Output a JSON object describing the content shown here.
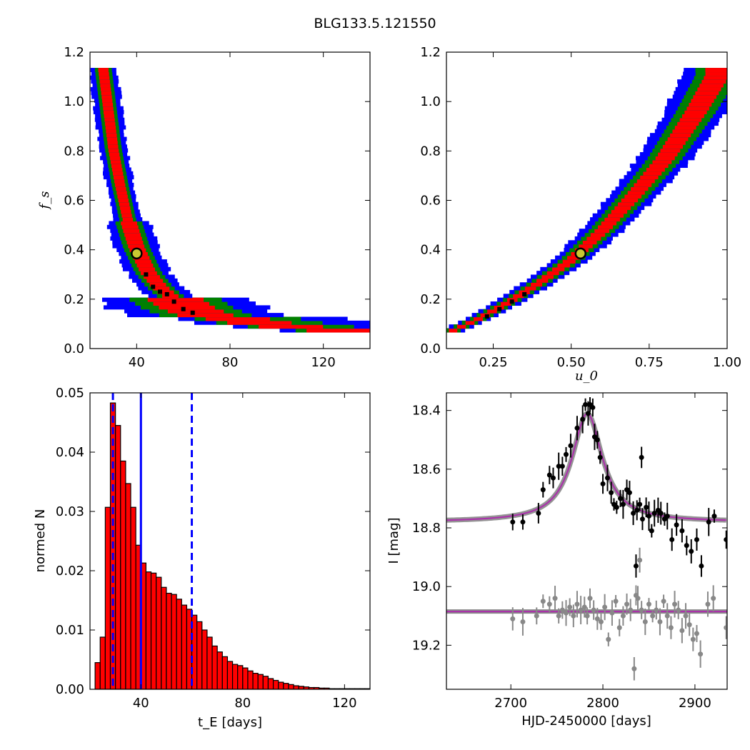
{
  "title": "BLG133.5.121550",
  "colors": {
    "sigma1": "#ff0000",
    "sigma2": "#008000",
    "sigma3": "#0000ff",
    "best": "#000000",
    "marker_face": "#c8c832",
    "bar": "#ff0000",
    "median": "#0000ff",
    "fit": "#aa33aa",
    "band": "#888888",
    "data": "#000000",
    "residual": "#888888"
  },
  "panels": {
    "fs_tE": {
      "ylabel": "f_s",
      "xticks": [
        "40",
        "80",
        "120"
      ],
      "yticks": [
        "0.0",
        "0.2",
        "0.4",
        "0.6",
        "0.8",
        "1.0",
        "1.2"
      ]
    },
    "fs_u0": {
      "xlabel": "u_0",
      "xticks": [
        "0.25",
        "0.50",
        "0.75",
        "1.00"
      ],
      "yticks": [
        "0.0",
        "0.2",
        "0.4",
        "0.6",
        "0.8",
        "1.0",
        "1.2"
      ]
    },
    "hist": {
      "xlabel_sym": "t_E",
      "xlabel_unit": "[days]",
      "ylabel": "normed N",
      "xticks": [
        "40",
        "80",
        "120"
      ],
      "yticks": [
        "0.00",
        "0.01",
        "0.02",
        "0.03",
        "0.04",
        "0.05"
      ]
    },
    "lightcurve": {
      "xlabel": "HJD-2450000 [days]",
      "ylabel": "I [mag]",
      "xticks": [
        "2700",
        "2800",
        "2900"
      ],
      "yticks": [
        "18.4",
        "18.6",
        "18.8",
        "19.0",
        "19.2"
      ]
    }
  },
  "chart_data": [
    {
      "type": "heatmap",
      "name": "f_s vs t_E",
      "x_range": [
        20,
        140
      ],
      "ylim": [
        0.0,
        1.2
      ],
      "ylabel": "f_s",
      "best_fit": {
        "tE": 40,
        "fs": 0.385
      },
      "ridge": [
        [
          26,
          1.1
        ],
        [
          28,
          0.95
        ],
        [
          30,
          0.8
        ],
        [
          33,
          0.65
        ],
        [
          36,
          0.52
        ],
        [
          40,
          0.4
        ],
        [
          45,
          0.3
        ],
        [
          50,
          0.24
        ],
        [
          55,
          0.2
        ],
        [
          62,
          0.155
        ],
        [
          70,
          0.125
        ],
        [
          80,
          0.105
        ],
        [
          90,
          0.09
        ],
        [
          100,
          0.08
        ],
        [
          110,
          0.075
        ],
        [
          120,
          0.07
        ]
      ],
      "best_chain": [
        [
          44,
          0.3
        ],
        [
          47,
          0.25
        ],
        [
          50,
          0.23
        ],
        [
          53,
          0.22
        ],
        [
          56,
          0.19
        ],
        [
          60,
          0.16
        ],
        [
          64,
          0.145
        ]
      ]
    },
    {
      "type": "heatmap",
      "name": "f_s vs u_0",
      "xlim": [
        0.1,
        1.0
      ],
      "ylim": [
        0.0,
        1.2
      ],
      "xlabel": "u_0",
      "best_fit": {
        "u0": 0.53,
        "fs": 0.385
      },
      "ridge": [
        [
          0.13,
          0.07
        ],
        [
          0.2,
          0.11
        ],
        [
          0.3,
          0.18
        ],
        [
          0.4,
          0.26
        ],
        [
          0.5,
          0.35
        ],
        [
          0.6,
          0.47
        ],
        [
          0.7,
          0.61
        ],
        [
          0.8,
          0.76
        ],
        [
          0.9,
          0.95
        ],
        [
          0.97,
          1.1
        ]
      ],
      "best_chain": [
        [
          0.23,
          0.13
        ],
        [
          0.27,
          0.16
        ],
        [
          0.31,
          0.19
        ],
        [
          0.35,
          0.22
        ]
      ]
    },
    {
      "type": "bar",
      "name": "t_E histogram",
      "xlim": [
        20,
        130
      ],
      "ylim": [
        0.0,
        0.05
      ],
      "xlabel": "t_E [days]",
      "ylabel": "normed N",
      "bin_start": 22,
      "bin_width": 2,
      "values": [
        0.0045,
        0.0088,
        0.0307,
        0.0483,
        0.0445,
        0.0385,
        0.0347,
        0.0307,
        0.0243,
        0.0213,
        0.0198,
        0.0196,
        0.0189,
        0.0172,
        0.0162,
        0.016,
        0.0152,
        0.0142,
        0.0135,
        0.0125,
        0.0114,
        0.01,
        0.0088,
        0.0073,
        0.0063,
        0.0055,
        0.0047,
        0.0042,
        0.004,
        0.0036,
        0.0031,
        0.0027,
        0.0025,
        0.0022,
        0.0018,
        0.0015,
        0.0012,
        0.001,
        0.0008,
        0.0006,
        0.0005,
        0.0004,
        0.0003,
        0.0003,
        0.0002,
        0.0002,
        0.0001,
        0.0001,
        0.0001,
        0.0001,
        0.0001,
        0.0001,
        0.0001,
        0.0001
      ],
      "median": 40,
      "interval": [
        29,
        60
      ]
    },
    {
      "type": "scatter",
      "name": "light curve",
      "xlim": [
        2630,
        2935
      ],
      "ylim": [
        19.35,
        18.34
      ],
      "xlabel": "HJD-2450000 [days]",
      "ylabel": "I [mag]",
      "model": {
        "t0": 2783,
        "baseline": 18.78,
        "peak": 18.41,
        "width": 20
      },
      "residual_baseline": 19.085,
      "data": [
        [
          2702,
          18.78
        ],
        [
          2713,
          18.78
        ],
        [
          2730,
          18.75
        ],
        [
          2735,
          18.67
        ],
        [
          2742,
          18.62
        ],
        [
          2746,
          18.63
        ],
        [
          2752,
          18.59
        ],
        [
          2756,
          18.59
        ],
        [
          2760,
          18.55
        ],
        [
          2765,
          18.52
        ],
        [
          2772,
          18.46
        ],
        [
          2778,
          18.43
        ],
        [
          2781,
          18.38
        ],
        [
          2784,
          18.41
        ],
        [
          2786,
          18.38
        ],
        [
          2789,
          18.39
        ],
        [
          2791,
          18.49
        ],
        [
          2794,
          18.5
        ],
        [
          2797,
          18.56
        ],
        [
          2800,
          18.65
        ],
        [
          2805,
          18.63
        ],
        [
          2809,
          18.68
        ],
        [
          2812,
          18.72
        ],
        [
          2815,
          18.73
        ],
        [
          2819,
          18.7
        ],
        [
          2822,
          18.72
        ],
        [
          2826,
          18.67
        ],
        [
          2829,
          18.68
        ],
        [
          2833,
          18.75
        ],
        [
          2837,
          18.74
        ],
        [
          2840,
          18.72
        ],
        [
          2843,
          18.77
        ],
        [
          2847,
          18.73
        ],
        [
          2850,
          18.76
        ],
        [
          2853,
          18.81
        ],
        [
          2856,
          18.75
        ],
        [
          2860,
          18.74
        ],
        [
          2863,
          18.75
        ],
        [
          2867,
          18.77
        ],
        [
          2870,
          18.76
        ],
        [
          2875,
          18.84
        ],
        [
          2880,
          18.79
        ],
        [
          2886,
          18.81
        ],
        [
          2891,
          18.86
        ],
        [
          2896,
          18.88
        ],
        [
          2902,
          18.84
        ],
        [
          2907,
          18.93
        ],
        [
          2915,
          18.78
        ],
        [
          2921,
          18.76
        ],
        [
          2934,
          18.84
        ],
        [
          2836,
          18.93
        ],
        [
          2842,
          18.56
        ]
      ],
      "residuals": [
        [
          2702,
          19.11
        ],
        [
          2713,
          19.12
        ],
        [
          2728,
          19.1
        ],
        [
          2735,
          19.05
        ],
        [
          2742,
          19.06
        ],
        [
          2748,
          19.04
        ],
        [
          2752,
          19.1
        ],
        [
          2756,
          19.08
        ],
        [
          2760,
          19.09
        ],
        [
          2764,
          19.07
        ],
        [
          2768,
          19.1
        ],
        [
          2772,
          19.06
        ],
        [
          2776,
          19.08
        ],
        [
          2780,
          19.07
        ],
        [
          2783,
          19.1
        ],
        [
          2786,
          19.04
        ],
        [
          2790,
          19.08
        ],
        [
          2794,
          19.11
        ],
        [
          2798,
          19.12
        ],
        [
          2802,
          19.07
        ],
        [
          2806,
          19.18
        ],
        [
          2810,
          19.09
        ],
        [
          2814,
          19.05
        ],
        [
          2818,
          19.14
        ],
        [
          2822,
          19.1
        ],
        [
          2826,
          19.06
        ],
        [
          2830,
          19.08
        ],
        [
          2834,
          19.28
        ],
        [
          2838,
          19.04
        ],
        [
          2842,
          19.08
        ],
        [
          2846,
          19.12
        ],
        [
          2850,
          19.06
        ],
        [
          2854,
          19.1
        ],
        [
          2858,
          19.08
        ],
        [
          2862,
          19.12
        ],
        [
          2866,
          19.05
        ],
        [
          2870,
          19.1
        ],
        [
          2874,
          19.14
        ],
        [
          2878,
          19.06
        ],
        [
          2882,
          19.08
        ],
        [
          2886,
          19.15
        ],
        [
          2890,
          19.1
        ],
        [
          2894,
          19.13
        ],
        [
          2898,
          19.18
        ],
        [
          2902,
          19.16
        ],
        [
          2906,
          19.23
        ],
        [
          2914,
          19.06
        ],
        [
          2920,
          19.04
        ],
        [
          2934,
          19.14
        ],
        [
          2836,
          19.03
        ],
        [
          2840,
          18.91
        ]
      ]
    }
  ]
}
